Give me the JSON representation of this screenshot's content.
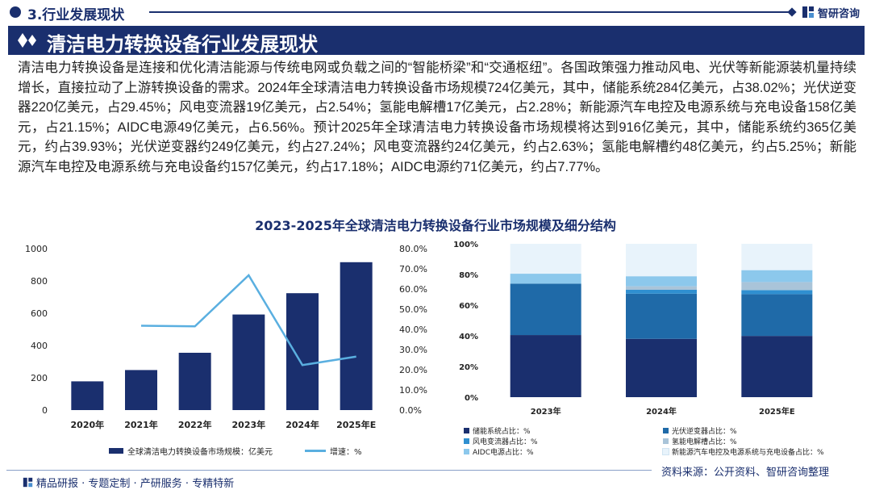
{
  "header": {
    "section_title": "3.行业发展现状",
    "brand": "智研咨询"
  },
  "banner": {
    "title": "清洁电力转换设备行业发展现状"
  },
  "intro_text": "清洁电力转换设备是连接和优化清洁能源与传统电网或负载之间的“智能桥梁”和“交通枢纽”。各国政策强力推动风电、光伏等新能源装机量持续增长，直接拉动了上游转换设备的需求。2024年全球清洁电力转换设备市场规模724亿美元，其中，储能系统284亿美元，占38.02%；光伏逆变器220亿美元，占29.45%；风电变流器19亿美元，占2.54%；氢能电解槽17亿美元，占2.28%；新能源汽车电控及电源系统与充电设备158亿美元，占21.15%；AIDC电源49亿美元，占6.56%。预计2025年全球清洁电力转换设备市场规模将达到916亿美元，其中，储能系统约365亿美元，约占39.93%；光伏逆变器约249亿美元，约占27.24%；风电变流器约24亿美元，约占2.63%；氢能电解槽约48亿美元，约占5.25%；新能源汽车电控及电源系统与充电设备约157亿美元，约占17.18%；AIDC电源约71亿美元，约占7.77%。",
  "chart_title": "2023-2025年全球清洁电力转换设备行业市场规模及细分结构",
  "chart_data": [
    {
      "type": "bar+line",
      "categories": [
        "2020年",
        "2021年",
        "2022年",
        "2023年",
        "2024年",
        "2025年E"
      ],
      "series": [
        {
          "name": "全球清洁电力转换设备市场规模：亿美元",
          "type": "bar",
          "axis": "left",
          "values": [
            178,
            248,
            355,
            592,
            724,
            916
          ]
        },
        {
          "name": "增速：%",
          "type": "line",
          "axis": "right",
          "values": [
            null,
            41.8,
            41.5,
            66.8,
            22.3,
            26.5
          ]
        }
      ],
      "left_axis": {
        "min": 0,
        "max": 1000,
        "ticks": [
          "0",
          "200",
          "400",
          "600",
          "800",
          "1000"
        ]
      },
      "right_axis": {
        "min": 0,
        "max": 80,
        "ticks": [
          "0.0%",
          "10.0%",
          "20.0%",
          "30.0%",
          "40.0%",
          "50.0%",
          "60.0%",
          "70.0%",
          "80.0%"
        ]
      },
      "colors": {
        "bar": "#1a2f6e",
        "line": "#5aafe0"
      }
    },
    {
      "type": "stacked-bar-100",
      "categories": [
        "2023年",
        "2024年",
        "2025年E"
      ],
      "series": [
        {
          "name": "储能系统占比：%",
          "color": "#1a2f6e",
          "values": [
            40.5,
            38.02,
            39.93
          ]
        },
        {
          "name": "光伏逆变器占比：%",
          "color": "#1f6aa8",
          "values": [
            33.5,
            29.45,
            27.24
          ]
        },
        {
          "name": "风电变流器占比：%",
          "color": "#2f8fd0",
          "values": [
            0.0,
            2.54,
            2.63
          ]
        },
        {
          "name": "氢能电解槽占比：%",
          "color": "#a9c4d9",
          "values": [
            0.0,
            2.28,
            5.25
          ]
        },
        {
          "name": "AIDC电源占比：%",
          "color": "#8cc8ec",
          "values": [
            6.5,
            6.56,
            7.77
          ]
        },
        {
          "name": "新能源汽车电控及电源系统与充电设备占比：%",
          "color": "#e8f3fb",
          "values": [
            19.5,
            21.15,
            17.18
          ]
        }
      ],
      "y_axis": {
        "min": 0,
        "max": 100,
        "ticks": [
          "0%",
          "20%",
          "40%",
          "60%",
          "80%",
          "100%"
        ]
      }
    }
  ],
  "source": "资料来源：公开资料、智研咨询整理",
  "footer": "精品研报 · 专题定制 · 产研服务 · 专精特新"
}
